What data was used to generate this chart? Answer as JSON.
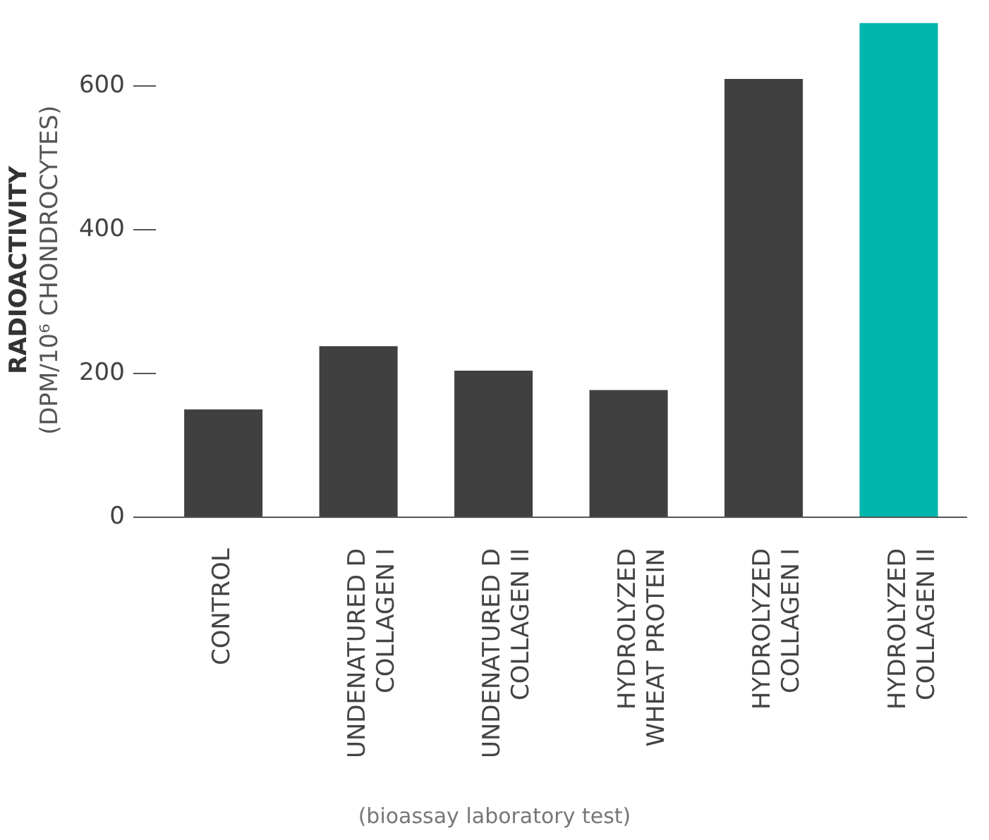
{
  "chart_data": {
    "type": "bar",
    "ylabel": "RADIOACTIVITY\n(DPM/10⁶ CHONDROCYTES)",
    "categories": [
      "CONTROL",
      "UNDENATURED D\nCOLLAGEN I",
      "UNDENATURED D\nCOLLAGEN II",
      "HYDROLYZED\nWHEAT PROTEIN",
      "HYDROLYZED\nCOLLAGEN I",
      "HYDROLYZED\nCOLLAGEN II"
    ],
    "values": [
      150,
      238,
      204,
      177,
      610,
      688
    ],
    "colors": [
      "#404040",
      "#404040",
      "#404040",
      "#404040",
      "#404040",
      "#00b5ad"
    ],
    "ylim": [
      0,
      688
    ],
    "yticks": [
      0,
      200,
      400,
      600
    ],
    "grid": false,
    "legend": false,
    "annotations": [
      "(bioassay laboratory test)"
    ]
  }
}
